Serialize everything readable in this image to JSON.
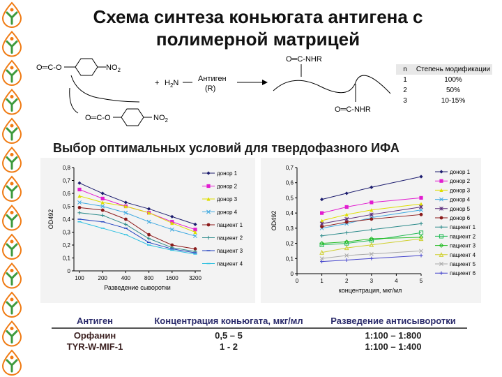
{
  "title_line1": "Схема синтеза коньюгата антигена с",
  "title_line2": "полимерной матрицей",
  "scheme": {
    "ester_top": "O═C-O",
    "ester_bottom": "O═C-O",
    "no2_top": "NO",
    "no2_bottom": "NO",
    "no2_sub": "2",
    "plus": "+",
    "h2n": "H",
    "h2n_sub": "2",
    "h2n_n": "N",
    "antigen": "Антиген",
    "antigen_r": "(R)",
    "nhr_top": "O═C-NHR",
    "nhr_bottom": "O═C-NHR"
  },
  "mod_table": {
    "h_n": "n",
    "h_degree": "Степень модификации",
    "rows": [
      {
        "n": "1",
        "v": "100%"
      },
      {
        "n": "2",
        "v": "50%"
      },
      {
        "n": "3",
        "v": "10-15%"
      }
    ]
  },
  "subtitle": "Выбор оптимальных условий для твердофазного ИФА",
  "chart_data": [
    {
      "type": "line",
      "ylabel": "OD492",
      "xlabel": "Разведение сыворотки",
      "categories": [
        "100",
        "200",
        "400",
        "800",
        "1600",
        "3200"
      ],
      "yticks": [
        "0",
        "0,1",
        "0,2",
        "0,3",
        "0,4",
        "0,5",
        "0,6",
        "0,7",
        "0,8"
      ],
      "ylim": [
        0,
        0.8
      ],
      "series": [
        {
          "name": "донор 1",
          "color": "#1c1c6e",
          "marker": "diamond",
          "values": [
            0.68,
            0.6,
            0.53,
            0.48,
            0.42,
            0.36
          ]
        },
        {
          "name": "донор 2",
          "color": "#e21dd0",
          "marker": "square",
          "values": [
            0.63,
            0.56,
            0.5,
            0.45,
            0.38,
            0.32
          ]
        },
        {
          "name": "донор 3",
          "color": "#dede00",
          "marker": "triangle",
          "values": [
            0.58,
            0.53,
            0.5,
            0.45,
            0.37,
            0.3
          ]
        },
        {
          "name": "донор 4",
          "color": "#3fa9e0",
          "marker": "x",
          "values": [
            0.53,
            0.5,
            0.45,
            0.38,
            0.32,
            0.27
          ]
        },
        {
          "name": "пациент 1",
          "color": "#8b1a1a",
          "marker": "dot",
          "values": [
            0.49,
            0.47,
            0.4,
            0.28,
            0.2,
            0.17
          ]
        },
        {
          "name": "пациент 2",
          "color": "#2a8a8a",
          "marker": "plus",
          "values": [
            0.45,
            0.43,
            0.36,
            0.25,
            0.18,
            0.15
          ]
        },
        {
          "name": "пациент 3",
          "color": "#1f3fbf",
          "marker": "dash",
          "values": [
            0.4,
            0.38,
            0.33,
            0.22,
            0.17,
            0.14
          ]
        },
        {
          "name": "пациент 4",
          "color": "#2bbfe0",
          "marker": "dash",
          "values": [
            0.38,
            0.33,
            0.28,
            0.2,
            0.16,
            0.13
          ]
        }
      ]
    },
    {
      "type": "line",
      "ylabel": "OD492",
      "xlabel": "концентрация, мкг/мл",
      "categories": [
        "0",
        "1",
        "2",
        "3",
        "4",
        "5"
      ],
      "yticks": [
        "0",
        "0,1",
        "0,2",
        "0,3",
        "0,4",
        "0,5",
        "0,6",
        "0,7"
      ],
      "ylim": [
        0,
        0.7
      ],
      "xlim": [
        0,
        5
      ],
      "series": [
        {
          "name": "донор 1",
          "color": "#1c1c6e",
          "marker": "diamond",
          "x": [
            1,
            2,
            3,
            5
          ],
          "values": [
            0.49,
            0.53,
            0.57,
            0.64
          ]
        },
        {
          "name": "донор 2",
          "color": "#e21dd0",
          "marker": "square",
          "x": [
            1,
            2,
            3,
            5
          ],
          "values": [
            0.4,
            0.44,
            0.47,
            0.5
          ]
        },
        {
          "name": "донор 3",
          "color": "#dede00",
          "marker": "triangle",
          "x": [
            1,
            2,
            3,
            5
          ],
          "values": [
            0.35,
            0.39,
            0.42,
            0.46
          ]
        },
        {
          "name": "донор 4",
          "color": "#3fa9e0",
          "marker": "x",
          "x": [
            1,
            2,
            3,
            5
          ],
          "values": [
            0.3,
            0.33,
            0.37,
            0.42
          ]
        },
        {
          "name": "донор 5",
          "color": "#5a2a7a",
          "marker": "asterisk",
          "x": [
            1,
            2,
            3,
            5
          ],
          "values": [
            0.33,
            0.36,
            0.39,
            0.44
          ]
        },
        {
          "name": "донор 6",
          "color": "#8b1a1a",
          "marker": "dot",
          "x": [
            1,
            2,
            3,
            5
          ],
          "values": [
            0.31,
            0.34,
            0.36,
            0.39
          ]
        },
        {
          "name": "пациент 1",
          "color": "#2a8a8a",
          "marker": "plus",
          "x": [
            1,
            2,
            3,
            5
          ],
          "values": [
            0.25,
            0.27,
            0.29,
            0.33
          ]
        },
        {
          "name": "пациент 2",
          "color": "#22bb55",
          "marker": "square-open",
          "x": [
            1,
            2,
            3,
            5
          ],
          "values": [
            0.19,
            0.2,
            0.22,
            0.27
          ]
        },
        {
          "name": "пациент 3",
          "color": "#1fbb1f",
          "marker": "diamond-open",
          "x": [
            1,
            2,
            3,
            5
          ],
          "values": [
            0.2,
            0.21,
            0.23,
            0.24
          ]
        },
        {
          "name": "пациент 4",
          "color": "#d0d030",
          "marker": "triangle-open",
          "x": [
            1,
            2,
            3,
            5
          ],
          "values": [
            0.14,
            0.17,
            0.19,
            0.23
          ]
        },
        {
          "name": "пациент 5",
          "color": "#aaaaaa",
          "marker": "x",
          "x": [
            1,
            2,
            3,
            5
          ],
          "values": [
            0.1,
            0.12,
            0.13,
            0.15
          ]
        },
        {
          "name": "пациент 6",
          "color": "#4444cc",
          "marker": "plus",
          "x": [
            1,
            2,
            3,
            5
          ],
          "values": [
            0.08,
            0.09,
            0.1,
            0.12
          ]
        }
      ]
    }
  ],
  "bottom_table": {
    "headers": [
      "Антиген",
      "Концентрация коньюгата, мкг/мл",
      "Разведение антисыворотки"
    ],
    "rows": [
      [
        "Орфанин",
        "0,5 – 5",
        "1:100 – 1:800"
      ],
      [
        "TYR-W-MIF-1",
        "1 - 2",
        "1:100 – 1:400"
      ]
    ]
  },
  "colors": {
    "logo_orange": "#f07a12",
    "logo_green": "#3d9a3d",
    "chart_bg": "#f3f3f3"
  }
}
